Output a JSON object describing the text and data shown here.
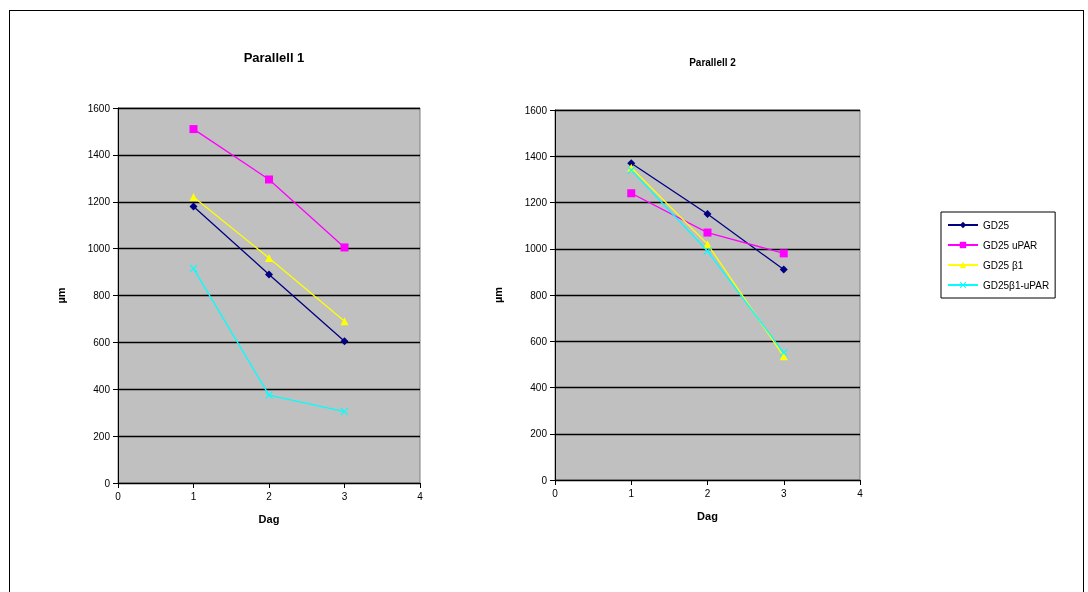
{
  "chart_data": [
    {
      "type": "line",
      "title": "Parallell 1",
      "xlabel": "Dag",
      "ylabel": "µm",
      "xlim": [
        0,
        4
      ],
      "xticks": [
        0,
        1,
        2,
        3,
        4
      ],
      "ylim": [
        0,
        1600
      ],
      "yticks": [
        0,
        200,
        400,
        600,
        800,
        1000,
        1200,
        1400,
        1600
      ],
      "grid": "y",
      "legend": false,
      "x": [
        1,
        2,
        3
      ],
      "series": [
        {
          "color": "#000080",
          "marker": "diamond",
          "values": [
            1180,
            890,
            605
          ]
        },
        {
          "color": "#ff00ff",
          "marker": "square",
          "values": [
            1510,
            1295,
            1005
          ]
        },
        {
          "color": "#ffff00",
          "marker": "triangle",
          "values": [
            1220,
            960,
            690
          ]
        },
        {
          "color": "#00ffff",
          "marker": "cross",
          "values": [
            915,
            375,
            305
          ]
        }
      ]
    },
    {
      "type": "line",
      "title": "Parallell 2",
      "xlabel": "Dag",
      "ylabel": "µm",
      "xlim": [
        0,
        4
      ],
      "xticks": [
        0,
        1,
        2,
        3,
        4
      ],
      "ylim": [
        0,
        1600
      ],
      "yticks": [
        0,
        200,
        400,
        600,
        800,
        1000,
        1200,
        1400,
        1600
      ],
      "grid": "y",
      "legend": "right",
      "x": [
        1,
        2,
        3
      ],
      "series": [
        {
          "name": "GD25",
          "color": "#000080",
          "marker": "diamond",
          "values": [
            1370,
            1150,
            910
          ]
        },
        {
          "name": "GD25 uPAR",
          "color": "#ff00ff",
          "marker": "square",
          "values": [
            1240,
            1070,
            980
          ]
        },
        {
          "name": "GD25 β1",
          "color": "#ffff00",
          "marker": "triangle",
          "values": [
            1350,
            1020,
            535
          ]
        },
        {
          "name": "GD25β1-uPAR",
          "color": "#00ffff",
          "marker": "cross",
          "values": [
            1340,
            990,
            550
          ]
        }
      ]
    }
  ]
}
